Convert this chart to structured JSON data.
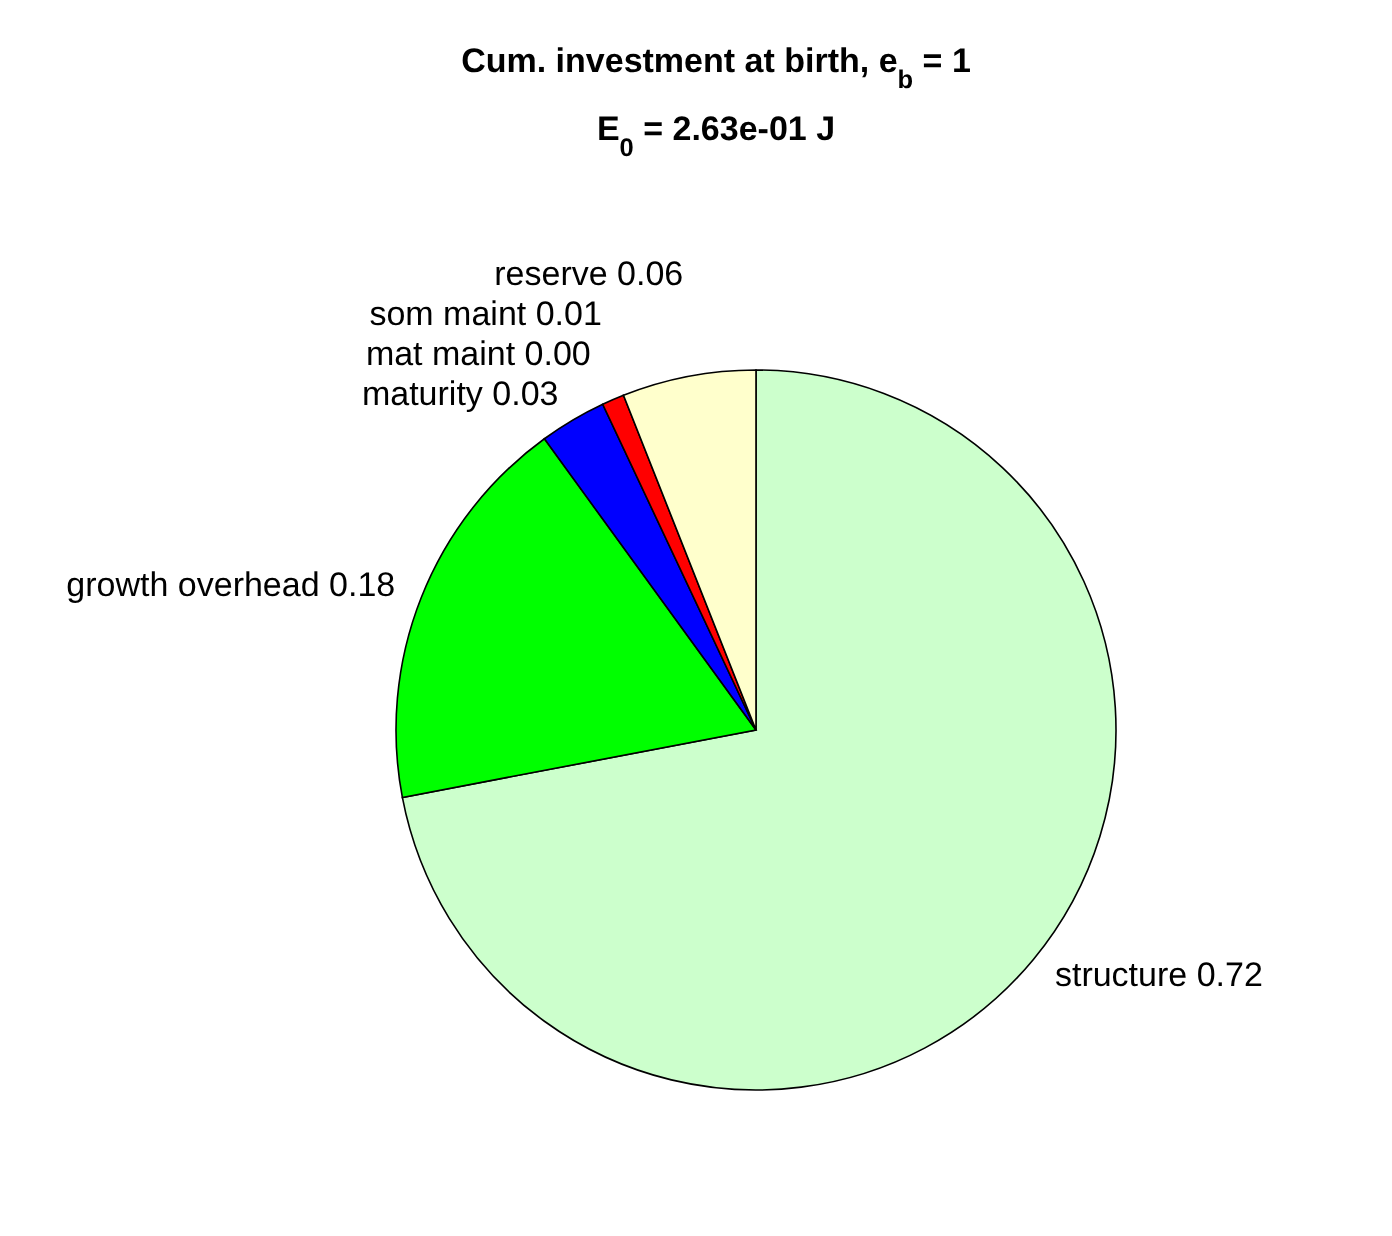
{
  "chart_data": {
    "type": "pie",
    "title": "Cum. investment at birth, e$_{b}$ = 1",
    "subtitle": "E$_{0}$ = 2.63e-01 J",
    "categories": [
      "structure 0.72",
      "growth overhead 0.18",
      "maturity 0.03",
      "mat maint 0.00",
      "som maint 0.01",
      "reserve 0.06"
    ],
    "values": [
      0.72,
      0.18,
      0.03,
      0.0,
      0.01,
      0.06
    ],
    "colors": [
      "#ccffcc",
      "#00ff00",
      "#0000ff",
      "#ff00ff",
      "#ff0000",
      "#ffffcc"
    ]
  }
}
